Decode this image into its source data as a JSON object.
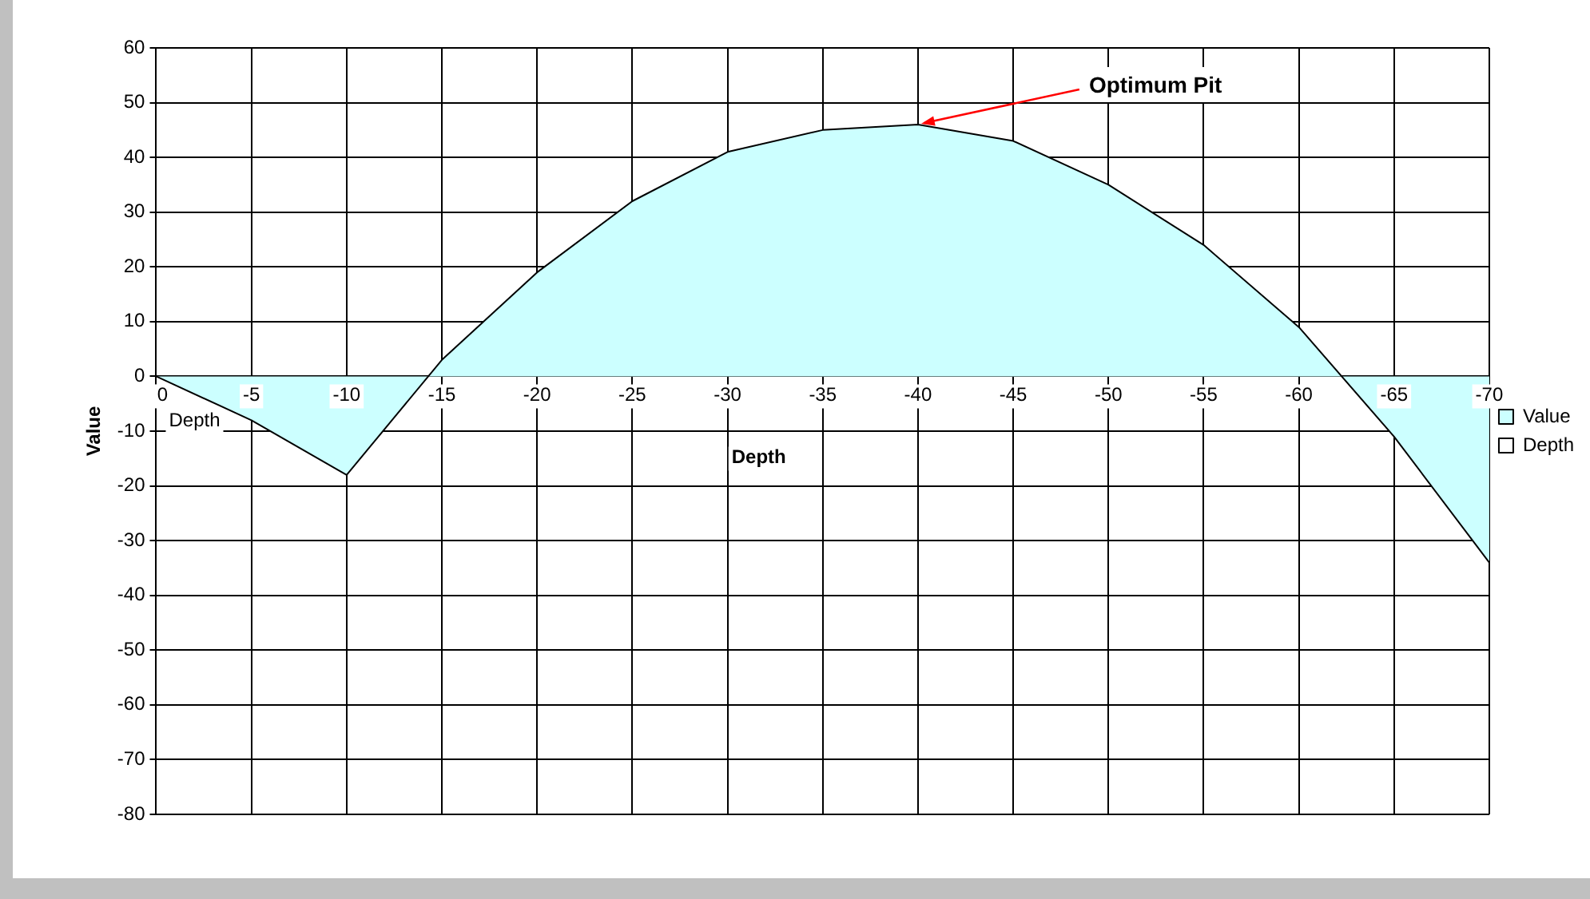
{
  "chart_data": {
    "type": "area",
    "xlabel": "Depth",
    "ylabel": "Value",
    "categories": [
      "0",
      "-5",
      "-10",
      "-15",
      "-20",
      "-25",
      "-30",
      "-35",
      "-40",
      "-45",
      "-50",
      "-55",
      "-60",
      "-65",
      "-70"
    ],
    "series": [
      {
        "name": "Value",
        "color": "#ccffff",
        "values": [
          0,
          -8,
          -18,
          3,
          19,
          32,
          41,
          45,
          46,
          43,
          35,
          24,
          9,
          -11,
          -34
        ]
      },
      {
        "name": "Depth",
        "color": "#ffffff",
        "values": [
          null,
          null,
          null,
          null,
          null,
          null,
          null,
          null,
          null,
          null,
          null,
          null,
          null,
          null,
          null
        ]
      }
    ],
    "ylim": [
      -80,
      60
    ],
    "yticks": [
      -80,
      -70,
      -60,
      -50,
      -40,
      -30,
      -20,
      -10,
      0,
      10,
      20,
      30,
      40,
      50,
      60
    ],
    "grid": true,
    "legend": "right",
    "annotations": [
      {
        "text": "Optimum Pit",
        "x": "-40",
        "y": 46
      },
      "Depth"
    ]
  }
}
